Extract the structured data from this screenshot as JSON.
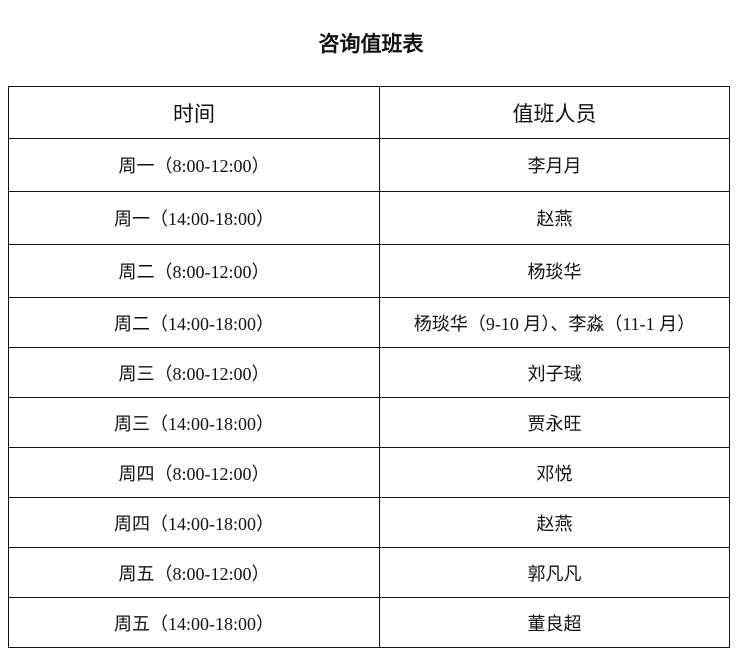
{
  "title": "咨询值班表",
  "headers": [
    "时间",
    "值班人员"
  ],
  "rows": [
    [
      "周一（8:00-12:00）",
      "李月月"
    ],
    [
      "周一（14:00-18:00）",
      "赵燕"
    ],
    [
      "周二（8:00-12:00）",
      "杨琰华"
    ],
    [
      "周二（14:00-18:00）",
      "杨琰华（9-10 月）、李淼（11-1 月）"
    ],
    [
      "周三（8:00-12:00）",
      "刘子琙"
    ],
    [
      "周三（14:00-18:00）",
      "贾永旺"
    ],
    [
      "周四（8:00-12:00）",
      "邓悦"
    ],
    [
      "周四（14:00-18:00）",
      "赵燕"
    ],
    [
      "周五（8:00-12:00）",
      "郭凡凡"
    ],
    [
      "周五（14:00-18:00）",
      "董良超"
    ]
  ]
}
